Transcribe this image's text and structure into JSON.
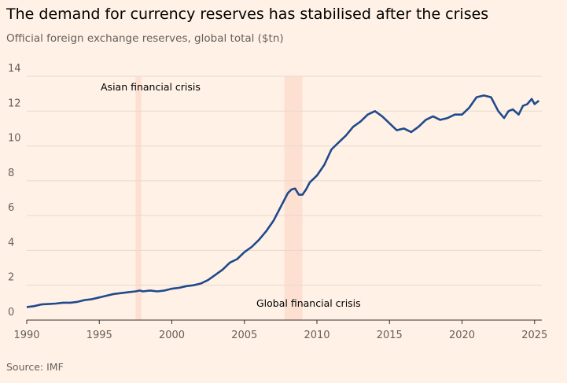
{
  "title": "The demand for currency reserves has stabilised after the crises",
  "subtitle": "Official foreign exchange reserves, global total ($tn)",
  "source": "Source: IMF",
  "colors": {
    "background": "#fff1e5",
    "line": "#1f4a8c",
    "band": "#fde0d2",
    "grid": "#e6d9ce",
    "axis": "#33302e"
  },
  "chart_data": {
    "type": "line",
    "title": "The demand for currency reserves has stabilised after the crises",
    "subtitle": "Official foreign exchange reserves, global total ($tn)",
    "xlabel": "",
    "ylabel": "",
    "xlim": [
      1990,
      2025.5
    ],
    "ylim": [
      0,
      14
    ],
    "x_ticks": [
      1990,
      1995,
      2000,
      2005,
      2010,
      2015,
      2020,
      2025
    ],
    "y_ticks": [
      0,
      2,
      4,
      6,
      8,
      10,
      12,
      14
    ],
    "grid": "horizontal",
    "shaded_periods": [
      {
        "label": "Asian financial crisis",
        "start": 1997.5,
        "end": 1997.9
      },
      {
        "label": "Global financial crisis",
        "start": 2007.75,
        "end": 2009.0
      }
    ],
    "series": [
      {
        "x": [
          1990,
          1990.5,
          1991,
          1991.5,
          1992,
          1992.5,
          1993,
          1993.5,
          1994,
          1994.5,
          1995,
          1995.5,
          1996,
          1996.5,
          1997,
          1997.5,
          1997.8,
          1998,
          1998.5,
          1999,
          1999.5,
          2000,
          2000.5,
          2001,
          2001.5,
          2002,
          2002.5,
          2003,
          2003.5,
          2004,
          2004.5,
          2005,
          2005.5,
          2006,
          2006.5,
          2007,
          2007.5,
          2008,
          2008.25,
          2008.5,
          2008.75,
          2009,
          2009.25,
          2009.5,
          2010,
          2010.5,
          2011,
          2011.5,
          2012,
          2012.5,
          2013,
          2013.5,
          2014,
          2014.5,
          2015,
          2015.5,
          2016,
          2016.5,
          2017,
          2017.5,
          2018,
          2018.5,
          2019,
          2019.5,
          2020,
          2020.5,
          2021,
          2021.5,
          2022,
          2022.5,
          2022.9,
          2023.2,
          2023.5,
          2023.9,
          2024.2,
          2024.5,
          2024.8,
          2025.0,
          2025.3
        ],
        "values": [
          0.75,
          0.8,
          0.9,
          0.92,
          0.95,
          1.0,
          1.0,
          1.05,
          1.15,
          1.2,
          1.3,
          1.4,
          1.5,
          1.55,
          1.6,
          1.65,
          1.7,
          1.65,
          1.7,
          1.65,
          1.7,
          1.8,
          1.85,
          1.95,
          2.0,
          2.1,
          2.3,
          2.6,
          2.9,
          3.3,
          3.5,
          3.9,
          4.2,
          4.6,
          5.1,
          5.7,
          6.5,
          7.3,
          7.5,
          7.55,
          7.2,
          7.2,
          7.5,
          7.9,
          8.3,
          8.9,
          9.8,
          10.2,
          10.6,
          11.1,
          11.4,
          11.8,
          12.0,
          11.7,
          11.3,
          10.9,
          11.0,
          10.8,
          11.1,
          11.5,
          11.7,
          11.5,
          11.6,
          11.8,
          11.8,
          12.2,
          12.8,
          12.9,
          12.8,
          12.0,
          11.6,
          12.0,
          12.1,
          11.8,
          12.3,
          12.4,
          12.7,
          12.4,
          12.6
        ]
      }
    ]
  }
}
